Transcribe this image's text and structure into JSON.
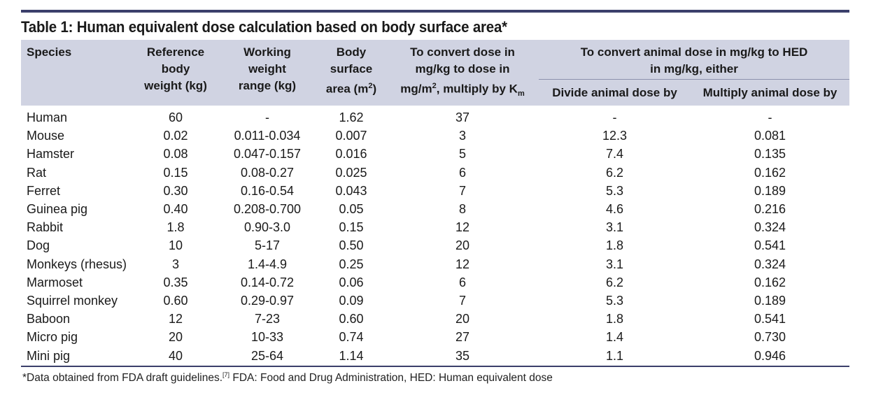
{
  "title": "Table 1: Human equivalent dose calculation based on body surface area*",
  "headers": {
    "species": "Species",
    "ref_weight": [
      "Reference",
      "body",
      "weight (kg)"
    ],
    "working_weight": [
      "Working",
      "weight",
      "range (kg)"
    ],
    "bsa": [
      "Body",
      "surface",
      "area (m",
      "2",
      ")"
    ],
    "convert": [
      "To convert dose in",
      "mg/kg to dose in",
      "mg/m",
      "2",
      ", multiply by K",
      "m"
    ],
    "hed": [
      "To convert animal dose in mg/kg to HED",
      "in mg/kg, either"
    ],
    "divide": "Divide animal dose by",
    "multiply": "Multiply animal dose by"
  },
  "rows": [
    {
      "species": "Human",
      "ref": "60",
      "range": "-",
      "bsa": "1.62",
      "km": "37",
      "divide": "-",
      "multiply": "-"
    },
    {
      "species": "Mouse",
      "ref": "0.02",
      "range": "0.011-0.034",
      "bsa": "0.007",
      "km": "3",
      "divide": "12.3",
      "multiply": "0.081"
    },
    {
      "species": "Hamster",
      "ref": "0.08",
      "range": "0.047-0.157",
      "bsa": "0.016",
      "km": "5",
      "divide": "7.4",
      "multiply": "0.135"
    },
    {
      "species": "Rat",
      "ref": "0.15",
      "range": "0.08-0.27",
      "bsa": "0.025",
      "km": "6",
      "divide": "6.2",
      "multiply": "0.162"
    },
    {
      "species": "Ferret",
      "ref": "0.30",
      "range": "0.16-0.54",
      "bsa": "0.043",
      "km": "7",
      "divide": "5.3",
      "multiply": "0.189"
    },
    {
      "species": "Guinea pig",
      "ref": "0.40",
      "range": "0.208-0.700",
      "bsa": "0.05",
      "km": "8",
      "divide": "4.6",
      "multiply": "0.216"
    },
    {
      "species": "Rabbit",
      "ref": "1.8",
      "range": "0.90-3.0",
      "bsa": "0.15",
      "km": "12",
      "divide": "3.1",
      "multiply": "0.324"
    },
    {
      "species": "Dog",
      "ref": "10",
      "range": "5-17",
      "bsa": "0.50",
      "km": "20",
      "divide": "1.8",
      "multiply": "0.541"
    },
    {
      "species": "Monkeys (rhesus)",
      "ref": "3",
      "range": "1.4-4.9",
      "bsa": "0.25",
      "km": "12",
      "divide": "3.1",
      "multiply": "0.324"
    },
    {
      "species": "Marmoset",
      "ref": "0.35",
      "range": "0.14-0.72",
      "bsa": "0.06",
      "km": "6",
      "divide": "6.2",
      "multiply": "0.162"
    },
    {
      "species": "Squirrel monkey",
      "ref": "0.60",
      "range": "0.29-0.97",
      "bsa": "0.09",
      "km": "7",
      "divide": "5.3",
      "multiply": "0.189"
    },
    {
      "species": "Baboon",
      "ref": "12",
      "range": "7-23",
      "bsa": "0.60",
      "km": "20",
      "divide": "1.8",
      "multiply": "0.541"
    },
    {
      "species": "Micro pig",
      "ref": "20",
      "range": "10-33",
      "bsa": "0.74",
      "km": "27",
      "divide": "1.4",
      "multiply": "0.730"
    },
    {
      "species": "Mini pig",
      "ref": "40",
      "range": "25-64",
      "bsa": "1.14",
      "km": "35",
      "divide": "1.1",
      "multiply": "0.946"
    }
  ],
  "footnote": {
    "before": "*Data obtained from FDA draft guidelines.",
    "ref": "[7]",
    "after": " FDA: Food and Drug Administration, HED: Human equivalent dose"
  },
  "colors": {
    "header_bg": "#d0d3e2",
    "rule": "#3b3f6b"
  }
}
